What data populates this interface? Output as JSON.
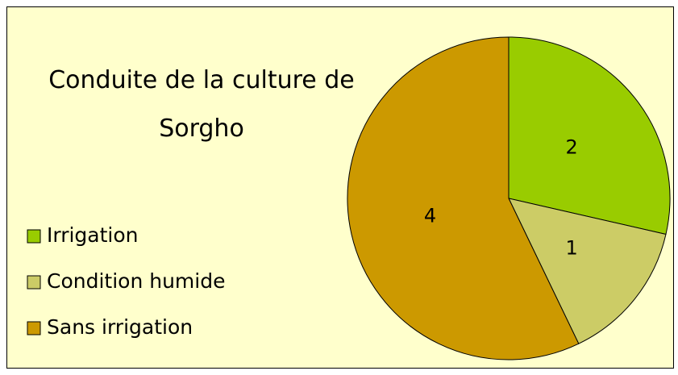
{
  "chart_data": {
    "type": "pie",
    "title": "Conduite de la culture de Sorgho",
    "categories": [
      "Irrigation",
      "Condition humide",
      "Sans irrigation"
    ],
    "values": [
      2,
      1,
      4
    ],
    "colors": [
      "#99cc00",
      "#cccc66",
      "#cc9900"
    ],
    "legend": "left"
  }
}
